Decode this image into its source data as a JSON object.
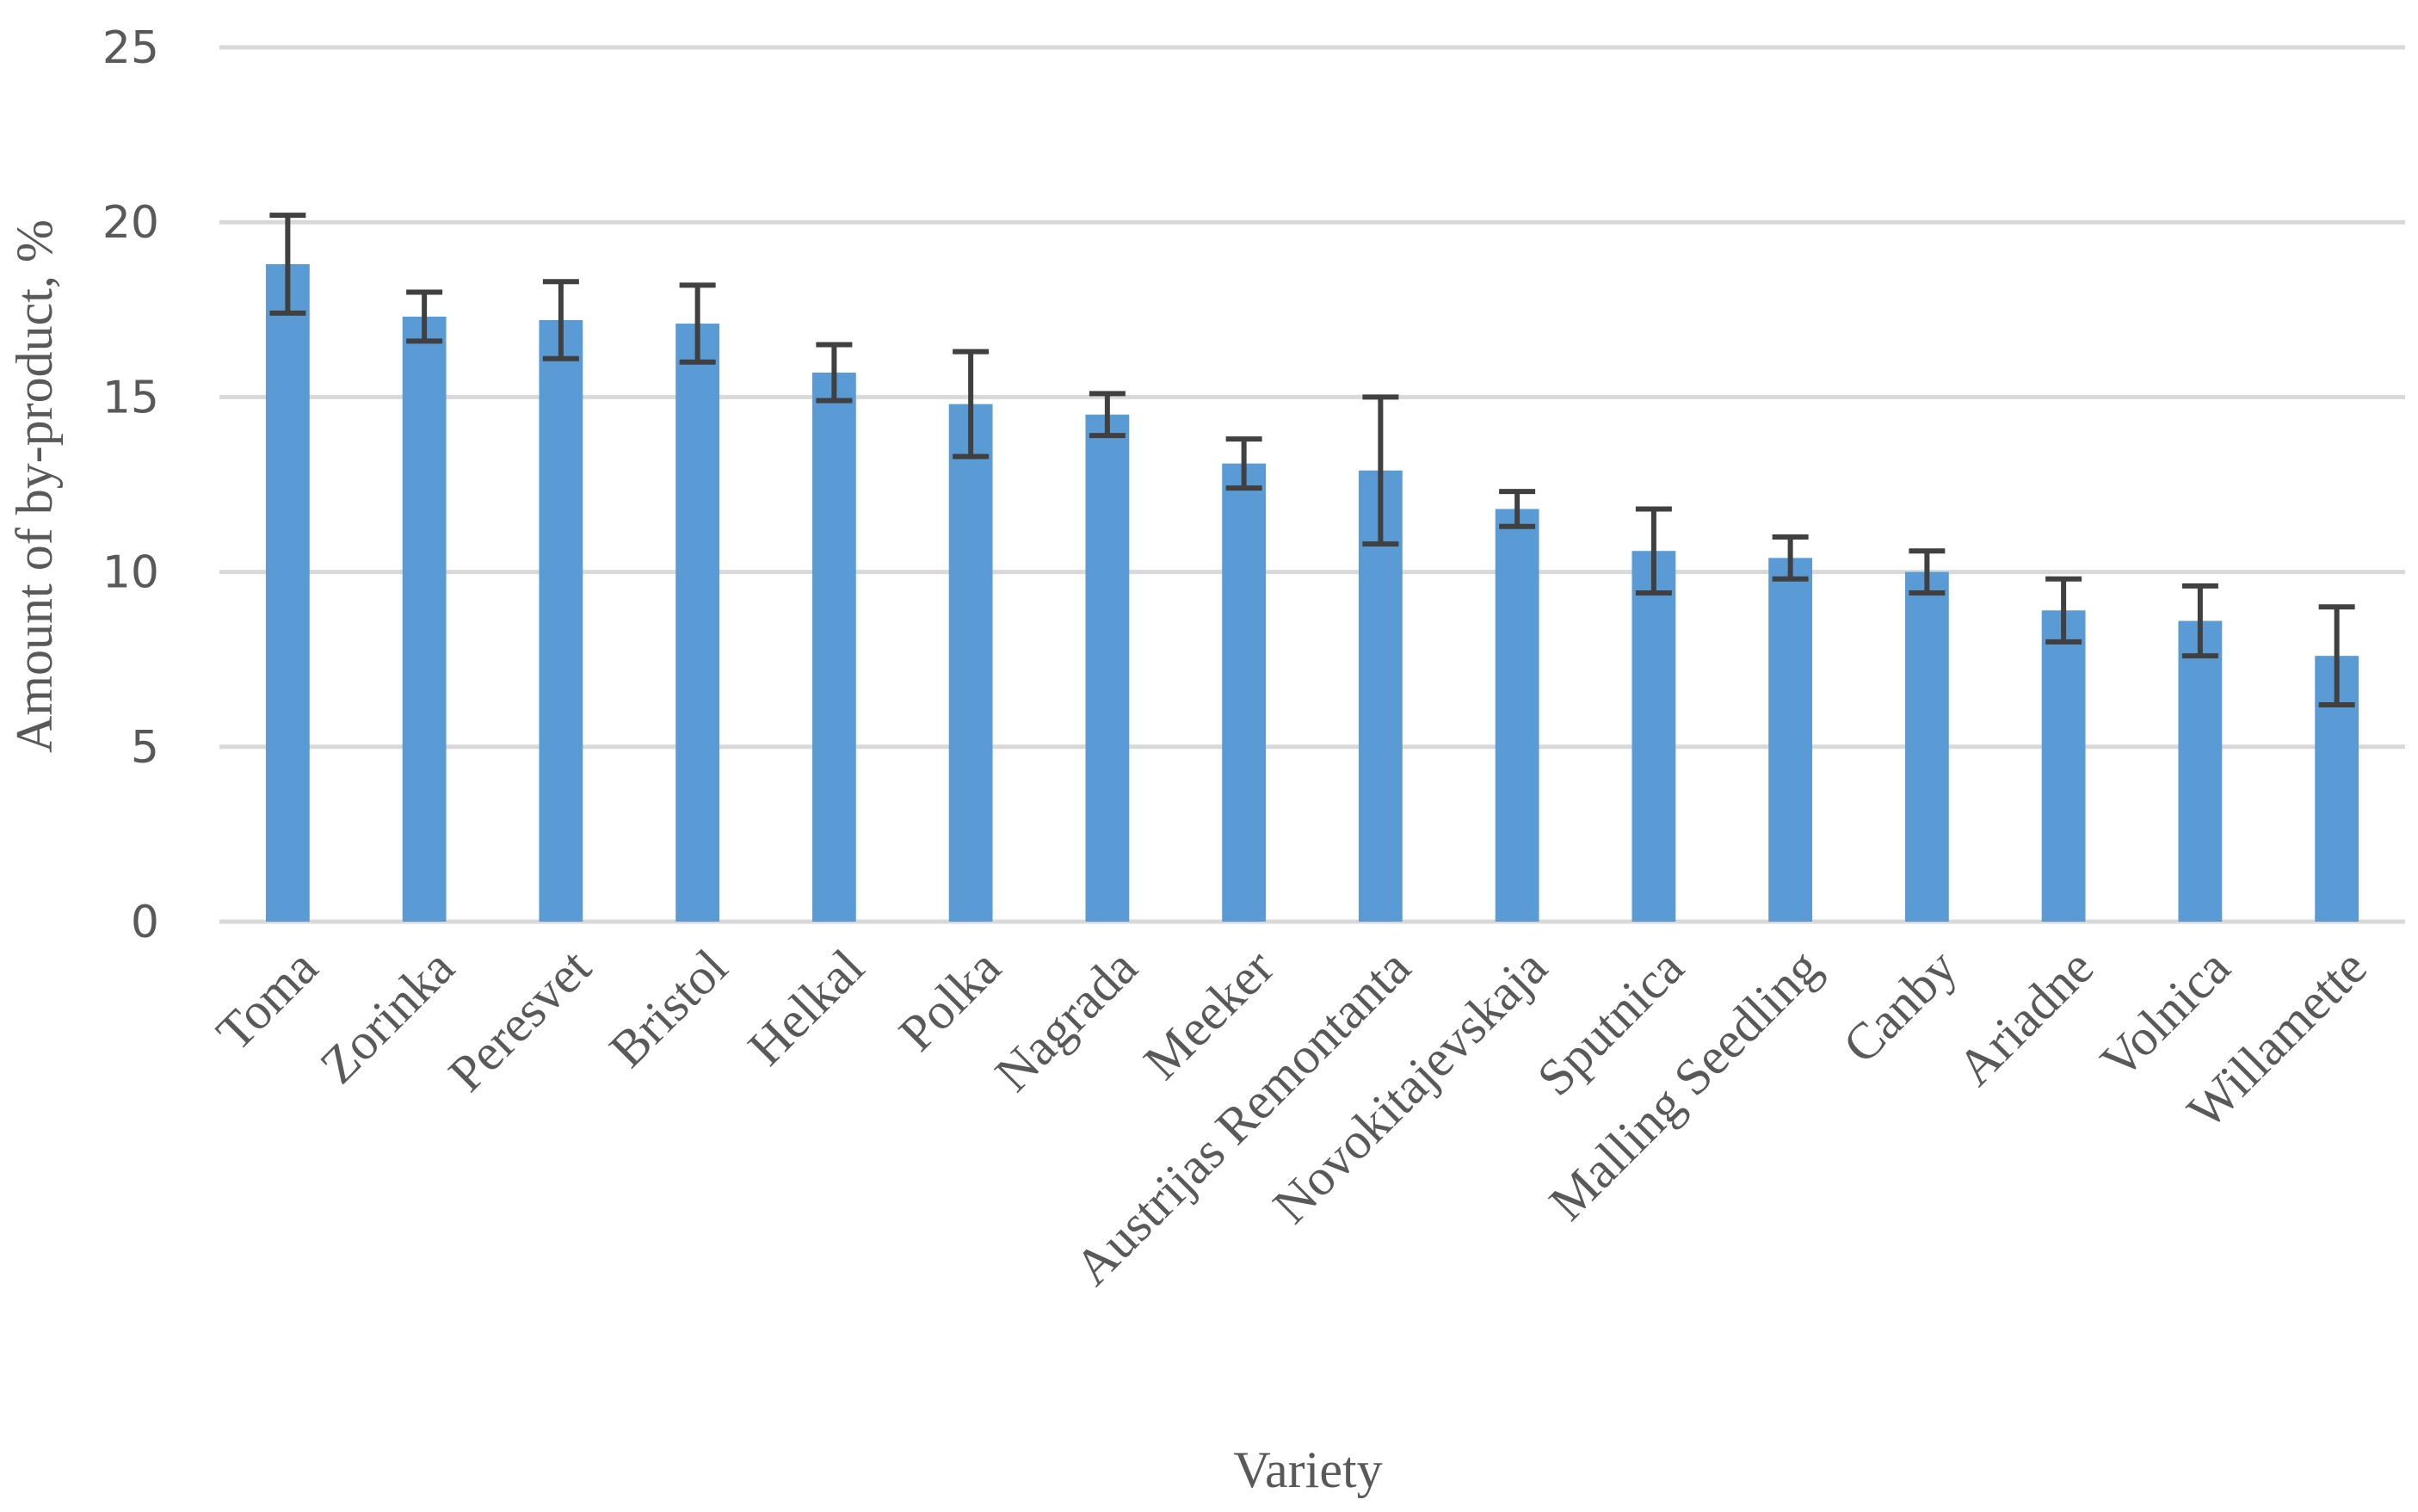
{
  "chart_data": {
    "type": "bar",
    "xlabel": "Variety",
    "ylabel": "Amount of by-product, %",
    "ylim": [
      0,
      25
    ],
    "yticks": [
      0,
      5,
      10,
      15,
      20,
      25
    ],
    "grid": true,
    "categories": [
      "Toma",
      "Zorinka",
      "Peresvet",
      "Bristol",
      "Helkal",
      "Polka",
      "Nagrada",
      "Meeker",
      "Austrijas Remontanta",
      "Novokitajevskaja",
      "Sputnica",
      "Malling Seedling",
      "Canby",
      "Ariadne",
      "Volnica",
      "Willamette"
    ],
    "values": [
      18.8,
      17.3,
      17.2,
      17.1,
      15.7,
      14.8,
      14.5,
      13.1,
      12.9,
      11.8,
      10.6,
      10.4,
      10.0,
      8.9,
      8.6,
      7.6
    ],
    "errors": [
      1.4,
      0.7,
      1.1,
      1.1,
      0.8,
      1.5,
      0.6,
      0.7,
      2.1,
      0.5,
      1.2,
      0.6,
      0.6,
      0.9,
      1.0,
      1.4
    ],
    "colors": {
      "bar": "#5b9bd5",
      "error_bar": "#404040",
      "grid": "#d9d9d9",
      "text": "#595959"
    }
  }
}
